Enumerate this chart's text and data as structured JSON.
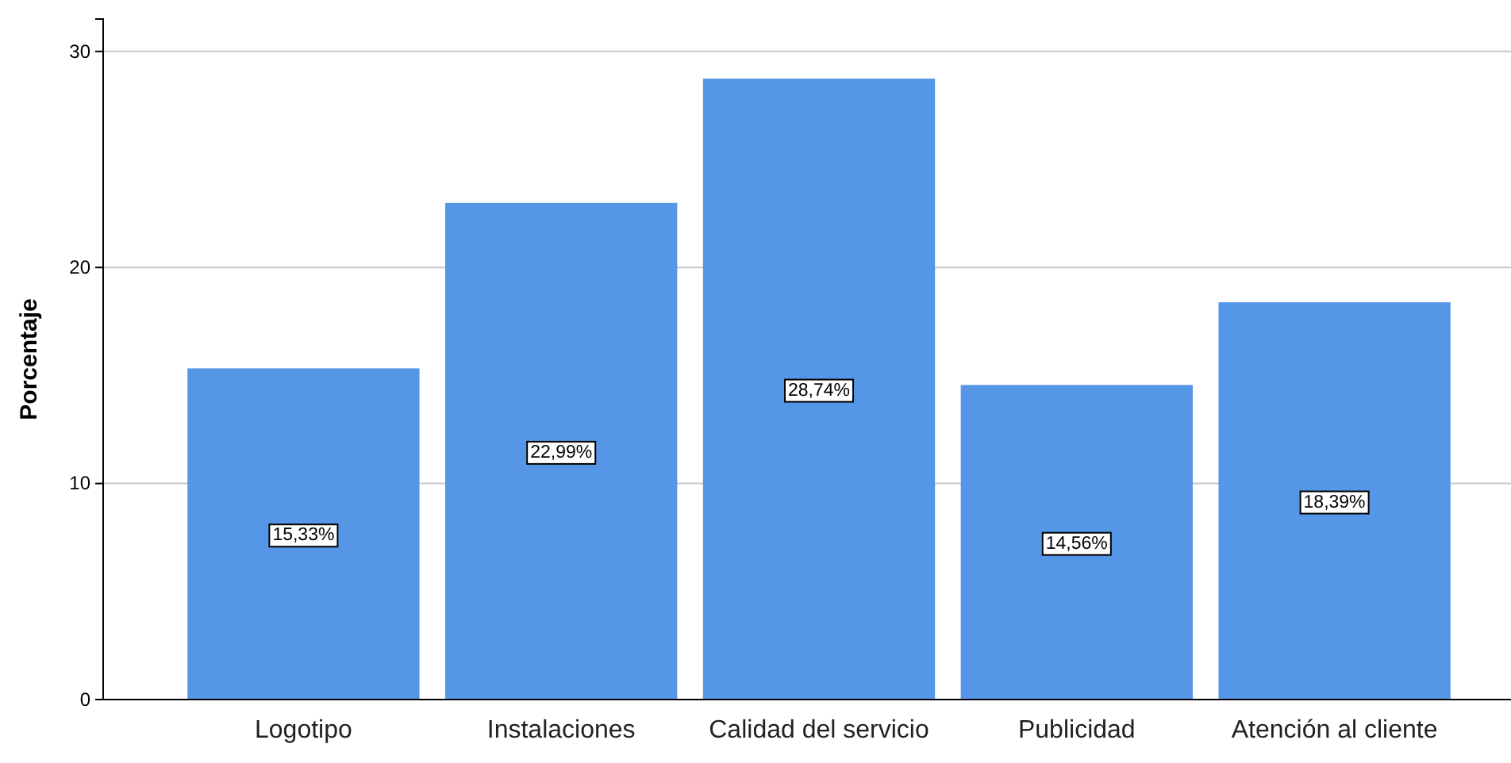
{
  "chart_data": {
    "type": "bar",
    "ylabel": "Porcentaje",
    "categories": [
      "Logotipo",
      "Instalaciones",
      "Calidad del servicio",
      "Publicidad",
      "Atención al cliente"
    ],
    "values": [
      15.33,
      22.99,
      28.74,
      14.56,
      18.39
    ],
    "value_labels": [
      "15,33%",
      "22,99%",
      "28,74%",
      "14,56%",
      "18,39%"
    ],
    "color": "#5596e6",
    "ylim": [
      0,
      31.5
    ],
    "yticks": [
      0,
      10,
      20,
      30
    ],
    "grid": "y"
  }
}
